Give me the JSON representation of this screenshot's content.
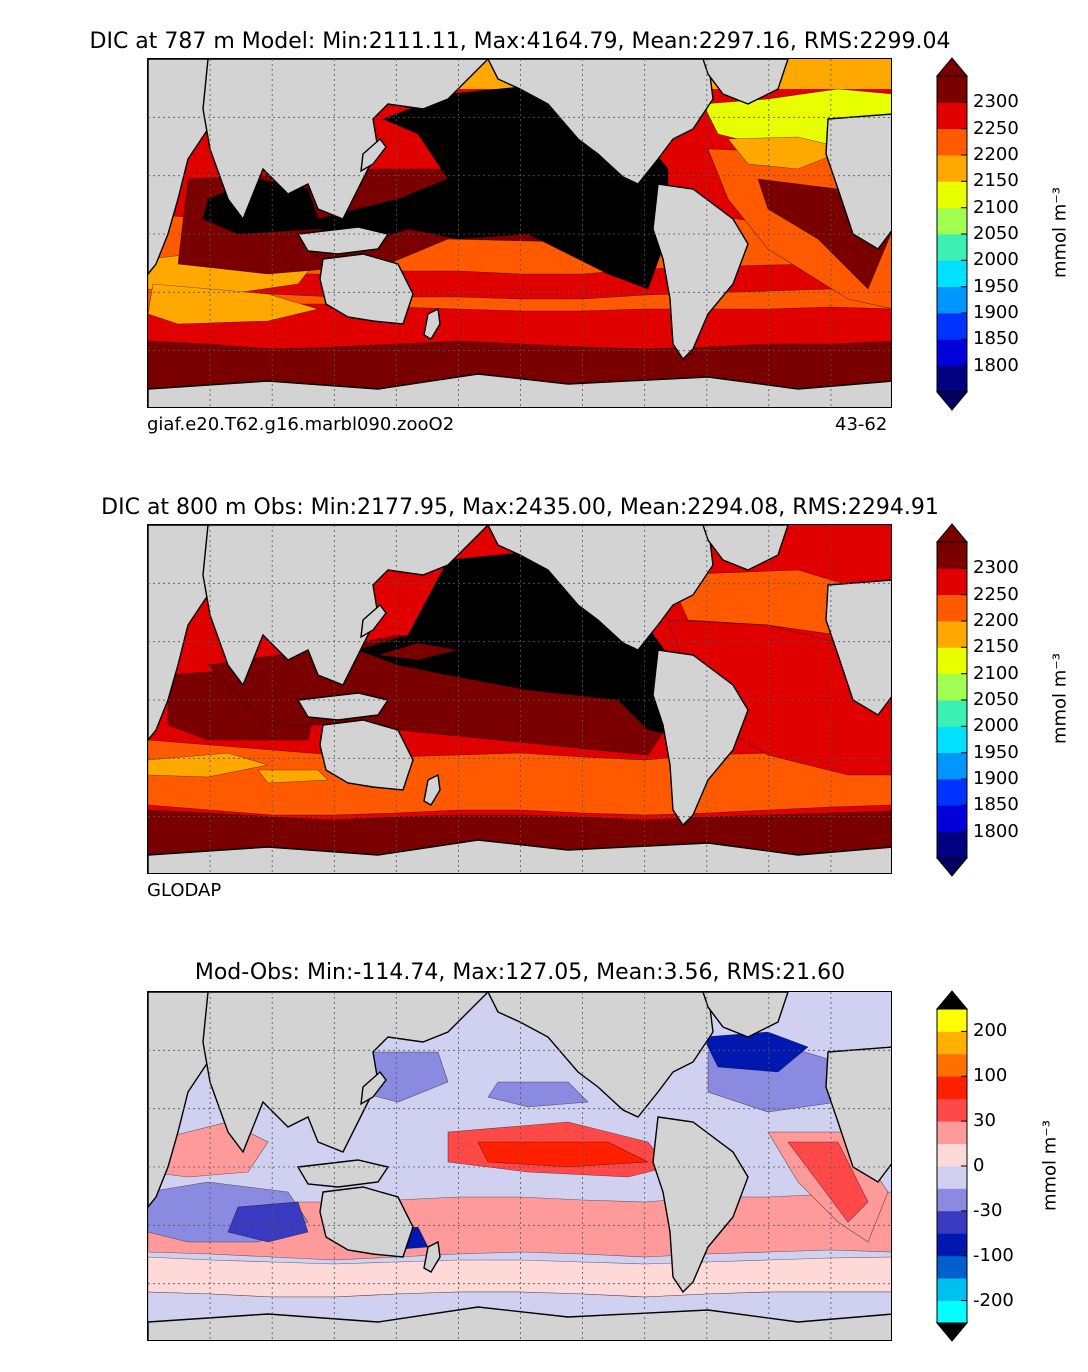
{
  "chart_data": [
    {
      "type": "heatmap",
      "title": "DIC at 787 m Model: Min:2111.11, Max:4164.79, Mean:2297.16, RMS:2299.04",
      "caption_left": "giaf.e20.T62.g16.marbl090.zooO2",
      "caption_right": "43-62",
      "colorbar_label": "mmol m⁻³",
      "colorbar_ticks": [
        "1800",
        "1850",
        "1900",
        "1950",
        "2000",
        "2050",
        "2100",
        "2150",
        "2200",
        "2250",
        "2300"
      ],
      "levels": [
        1775,
        1800,
        1850,
        1900,
        1950,
        2000,
        2050,
        2100,
        2150,
        2200,
        2250,
        2300,
        2325
      ],
      "extend": "both"
    },
    {
      "type": "heatmap",
      "title": "DIC at 800 m Obs: Min:2177.95, Max:2435.00, Mean:2294.08, RMS:2294.91",
      "caption_left": "GLODAP",
      "caption_right": "",
      "colorbar_label": "mmol m⁻³",
      "colorbar_ticks": [
        "1800",
        "1850",
        "1900",
        "1950",
        "2000",
        "2050",
        "2100",
        "2150",
        "2200",
        "2250",
        "2300"
      ],
      "levels": [
        1775,
        1800,
        1850,
        1900,
        1950,
        2000,
        2050,
        2100,
        2150,
        2200,
        2250,
        2300,
        2325
      ],
      "extend": "both"
    },
    {
      "type": "heatmap",
      "title": "Mod-Obs: Min:-114.74, Max:127.05, Mean:3.56, RMS:21.60",
      "caption_left": "",
      "caption_right": "",
      "colorbar_label": "mmol m⁻³",
      "colorbar_ticks": [
        "-200",
        "-100",
        "-30",
        "0",
        "30",
        "100",
        "200"
      ],
      "levels": [
        -200,
        -100,
        -50,
        -30,
        -20,
        -10,
        0,
        10,
        20,
        30,
        50,
        100,
        200
      ],
      "extend": "both"
    }
  ],
  "colors": {
    "dic_palette": [
      "#000080",
      "#0000d8",
      "#0032ff",
      "#0096ff",
      "#00e0ff",
      "#3cf0b4",
      "#a0ff50",
      "#e8ff00",
      "#ffa800",
      "#ff5a00",
      "#e00000",
      "#7a0000"
    ],
    "dic_over": "#000000",
    "dic_under": "#000060",
    "diff_palette": [
      "#00ffff",
      "#00c0f0",
      "#0060d0",
      "#0018b0",
      "#3a3ac0",
      "#8a8ae0",
      "#d0d0f0",
      "#ffd8d8",
      "#ff9a9a",
      "#ff4848",
      "#ff2000",
      "#ff7000",
      "#ffb000",
      "#ffff00"
    ],
    "land": "#d3d3d3",
    "missing": "#ffffff",
    "grid": "#555555"
  }
}
